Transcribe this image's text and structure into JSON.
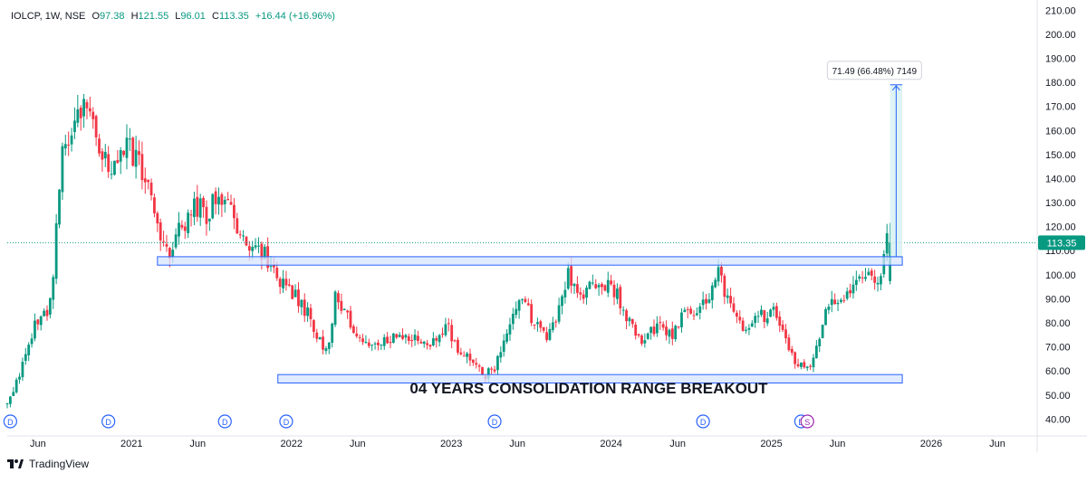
{
  "header": {
    "symbol": "IOLCP",
    "interval": "1W",
    "exchange": "NSE",
    "o_label": "O",
    "open": "97.38",
    "h_label": "H",
    "high": "121.55",
    "l_label": "L",
    "low": "96.01",
    "c_label": "C",
    "close": "113.35",
    "change": "+16.44 (+16.96%)"
  },
  "branding": {
    "name": "TradingView",
    "logo_icon": "tradingview-logo-icon"
  },
  "colors": {
    "up": "#089981",
    "down": "#f23645",
    "zone_fill": "#d6e4ff",
    "zone_stroke": "#2962ff",
    "measure_fill": "#d6f0f0",
    "price_line": "#089981",
    "axis_text": "#131722"
  },
  "chart_data": {
    "type": "candlestick",
    "title": "",
    "y_axis": {
      "side": "right",
      "ylim": [
        33,
        212
      ],
      "ticks": [
        40,
        50,
        60,
        70,
        80,
        90,
        100,
        110,
        120,
        130,
        140,
        150,
        160,
        170,
        180,
        190,
        200,
        210
      ],
      "tick_labels": [
        "40.00",
        "50.00",
        "60.00",
        "70.00",
        "80.00",
        "90.00",
        "100.00",
        "110.00",
        "120.00",
        "130.00",
        "140.00",
        "150.00",
        "160.00",
        "170.00",
        "180.00",
        "190.00",
        "200.00",
        "210.00"
      ]
    },
    "x_axis": {
      "start": "2020-03-23",
      "end": "2026-08-31",
      "ticks": [
        {
          "date": "2020-06-01",
          "label": "Jun"
        },
        {
          "date": "2021-01-01",
          "label": "2021"
        },
        {
          "date": "2021-06-01",
          "label": "Jun"
        },
        {
          "date": "2022-01-01",
          "label": "2022"
        },
        {
          "date": "2022-06-01",
          "label": "Jun"
        },
        {
          "date": "2023-01-01",
          "label": "2023"
        },
        {
          "date": "2023-06-01",
          "label": "Jun"
        },
        {
          "date": "2024-01-01",
          "label": "2024"
        },
        {
          "date": "2024-06-01",
          "label": "Jun"
        },
        {
          "date": "2025-01-01",
          "label": "2025"
        },
        {
          "date": "2025-06-01",
          "label": "Jun"
        },
        {
          "date": "2026-01-01",
          "label": "2026"
        },
        {
          "date": "2026-06-01",
          "label": "Jun"
        }
      ]
    },
    "last_price": 113.35,
    "last_price_label": "113.35",
    "grid": false,
    "legend": "none",
    "price_path": {
      "first_week": "2020-03-23",
      "anchors": [
        [
          "2020-03-23",
          46
        ],
        [
          "2020-04-20",
          58
        ],
        [
          "2020-05-25",
          80
        ],
        [
          "2020-06-22",
          84
        ],
        [
          "2020-07-06",
          100
        ],
        [
          "2020-07-27",
          155
        ],
        [
          "2020-08-31",
          165
        ],
        [
          "2020-09-14",
          175
        ],
        [
          "2020-10-05",
          160
        ],
        [
          "2020-10-26",
          150
        ],
        [
          "2020-11-16",
          142
        ],
        [
          "2020-12-07",
          155
        ],
        [
          "2021-01-04",
          150
        ],
        [
          "2021-02-15",
          135
        ],
        [
          "2021-03-08",
          115
        ],
        [
          "2021-03-29",
          110
        ],
        [
          "2021-04-26",
          120
        ],
        [
          "2021-05-24",
          130
        ],
        [
          "2021-06-21",
          125
        ],
        [
          "2021-07-19",
          133
        ],
        [
          "2021-08-16",
          130
        ],
        [
          "2021-09-06",
          115
        ],
        [
          "2021-10-04",
          112
        ],
        [
          "2021-11-01",
          108
        ],
        [
          "2021-12-06",
          98
        ],
        [
          "2022-01-10",
          92
        ],
        [
          "2022-02-14",
          82
        ],
        [
          "2022-03-07",
          72
        ],
        [
          "2022-03-28",
          70
        ],
        [
          "2022-04-11",
          92
        ],
        [
          "2022-05-09",
          82
        ],
        [
          "2022-06-20",
          70
        ],
        [
          "2022-08-01",
          72
        ],
        [
          "2022-09-05",
          75
        ],
        [
          "2022-10-17",
          72
        ],
        [
          "2022-11-14",
          70
        ],
        [
          "2022-12-19",
          80
        ],
        [
          "2023-01-16",
          70
        ],
        [
          "2023-02-20",
          64
        ],
        [
          "2023-03-20",
          58
        ],
        [
          "2023-04-10",
          62
        ],
        [
          "2023-05-08",
          78
        ],
        [
          "2023-06-12",
          90
        ],
        [
          "2023-07-10",
          80
        ],
        [
          "2023-08-07",
          75
        ],
        [
          "2023-09-04",
          85
        ],
        [
          "2023-09-25",
          100
        ],
        [
          "2023-10-23",
          90
        ],
        [
          "2023-11-20",
          95
        ],
        [
          "2023-12-18",
          96
        ],
        [
          "2024-01-15",
          92
        ],
        [
          "2024-02-12",
          80
        ],
        [
          "2024-03-11",
          72
        ],
        [
          "2024-04-15",
          78
        ],
        [
          "2024-05-20",
          76
        ],
        [
          "2024-06-17",
          85
        ],
        [
          "2024-07-15",
          82
        ],
        [
          "2024-08-05",
          90
        ],
        [
          "2024-09-02",
          100
        ],
        [
          "2024-10-07",
          85
        ],
        [
          "2024-11-04",
          75
        ],
        [
          "2024-12-02",
          82
        ],
        [
          "2025-01-06",
          85
        ],
        [
          "2025-02-03",
          72
        ],
        [
          "2025-03-03",
          62
        ],
        [
          "2025-04-07",
          64
        ],
        [
          "2025-05-05",
          85
        ],
        [
          "2025-06-09",
          90
        ],
        [
          "2025-07-07",
          97
        ],
        [
          "2025-08-04",
          100
        ],
        [
          "2025-09-01",
          95
        ],
        [
          "2025-09-22",
          113.35
        ]
      ],
      "final_candle": {
        "date": "2025-09-29",
        "o": 97.38,
        "h": 121.55,
        "l": 96.01,
        "c": 113.35
      }
    },
    "annotations": {
      "resistance_zone": {
        "start": "2021-03-01",
        "end": "2025-10-27",
        "low": 104,
        "high": 107.5
      },
      "support_zone": {
        "start": "2021-12-01",
        "end": "2025-10-27",
        "low": 55,
        "high": 58.5
      },
      "range_label": "04 YEARS CONSOLIDATION RANGE BREAKOUT",
      "measure": {
        "start": "2025-09-29",
        "end": "2025-10-27",
        "from": 107.5,
        "to": 179,
        "label": "71.49 (66.48%) 7149"
      },
      "event_markers": [
        {
          "date": "2020-03-30",
          "label": "D"
        },
        {
          "date": "2020-11-09",
          "label": "D"
        },
        {
          "date": "2021-08-02",
          "label": "D"
        },
        {
          "date": "2021-12-20",
          "label": "D"
        },
        {
          "date": "2023-04-10",
          "label": "D"
        },
        {
          "date": "2024-07-29",
          "label": "D"
        },
        {
          "date": "2025-03-10",
          "label": "D"
        },
        {
          "date": "2025-03-24",
          "label": "S"
        }
      ]
    }
  }
}
